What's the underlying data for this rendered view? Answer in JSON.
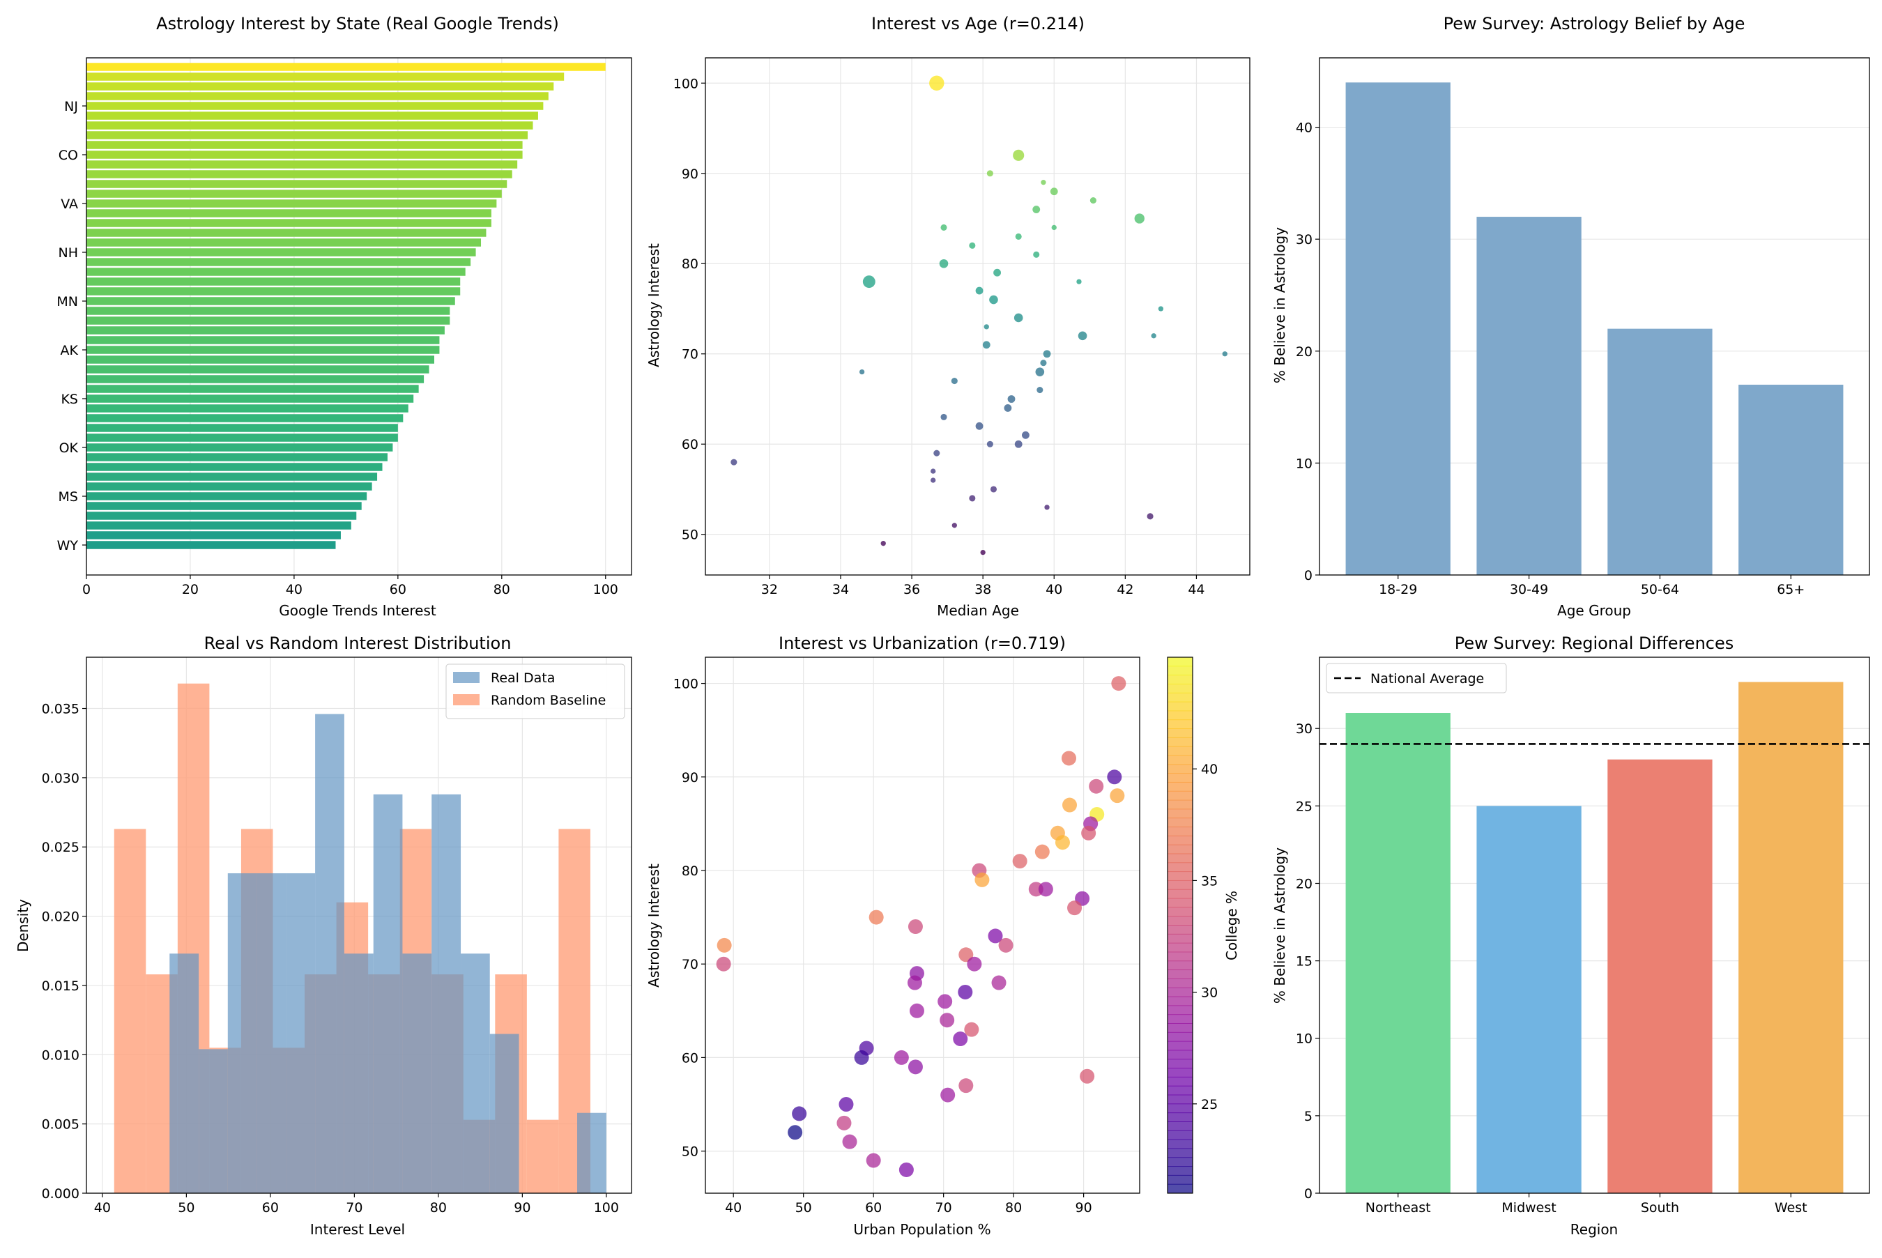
{
  "figure": {
    "background": "#ffffff",
    "grid": true,
    "grid_color": "#e6e6e6"
  },
  "chart_data": [
    {
      "id": "states",
      "type": "bar",
      "orientation": "horizontal",
      "title": "Astrology Interest by State (Real Google Trends)",
      "xlabel": "Google Trends Interest",
      "ylabel": "",
      "xlim": [
        0,
        105
      ],
      "xticks": [
        0,
        20,
        40,
        60,
        80,
        100
      ],
      "colormap": "viridis",
      "color_by": "value",
      "values": [
        100,
        92,
        90,
        89,
        88,
        87,
        86,
        85,
        84,
        84,
        83,
        82,
        81,
        80,
        79,
        78,
        78,
        77,
        76,
        75,
        74,
        73,
        72,
        72,
        71,
        70,
        70,
        69,
        68,
        68,
        67,
        66,
        65,
        64,
        63,
        62,
        61,
        60,
        60,
        59,
        58,
        57,
        56,
        55,
        54,
        53,
        52,
        51,
        49,
        48
      ],
      "ytick_labels": [
        "NJ",
        "CO",
        "VA",
        "NH",
        "MN",
        "AK",
        "KS",
        "OK",
        "MS",
        "WY"
      ],
      "ytick_indices": [
        4,
        9,
        14,
        19,
        24,
        29,
        34,
        39,
        44,
        49
      ]
    },
    {
      "id": "age",
      "type": "scatter",
      "title": "Interest vs Age (r=0.214)",
      "xlabel": "Median Age",
      "ylabel": "Astrology Interest",
      "xlim": [
        30.2,
        45.5
      ],
      "ylim": [
        45.5,
        102.8
      ],
      "xticks": [
        32,
        34,
        36,
        38,
        40,
        42,
        44
      ],
      "yticks": [
        50,
        60,
        70,
        80,
        90,
        100
      ],
      "colormap": "viridis",
      "color_by": "y",
      "color_range": [
        48,
        100
      ],
      "marker_size": "population",
      "points": [
        {
          "x": 36.7,
          "y": 100,
          "s": 10
        },
        {
          "x": 38.2,
          "y": 90,
          "s": 3
        },
        {
          "x": 39.7,
          "y": 89,
          "s": 2
        },
        {
          "x": 40.0,
          "y": 88,
          "s": 4
        },
        {
          "x": 39.0,
          "y": 92,
          "s": 7
        },
        {
          "x": 41.1,
          "y": 87,
          "s": 3
        },
        {
          "x": 39.5,
          "y": 86,
          "s": 4
        },
        {
          "x": 42.4,
          "y": 85,
          "s": 6
        },
        {
          "x": 36.9,
          "y": 84,
          "s": 3
        },
        {
          "x": 40.0,
          "y": 84,
          "s": 2
        },
        {
          "x": 39.0,
          "y": 83,
          "s": 3
        },
        {
          "x": 37.7,
          "y": 82,
          "s": 3
        },
        {
          "x": 39.5,
          "y": 81,
          "s": 3
        },
        {
          "x": 36.9,
          "y": 80,
          "s": 5
        },
        {
          "x": 38.4,
          "y": 79,
          "s": 4
        },
        {
          "x": 34.8,
          "y": 78,
          "s": 8
        },
        {
          "x": 40.7,
          "y": 78,
          "s": 2
        },
        {
          "x": 37.9,
          "y": 77,
          "s": 4
        },
        {
          "x": 38.3,
          "y": 76,
          "s": 5
        },
        {
          "x": 43.0,
          "y": 75,
          "s": 2
        },
        {
          "x": 39.0,
          "y": 74,
          "s": 5
        },
        {
          "x": 38.1,
          "y": 73,
          "s": 2
        },
        {
          "x": 40.8,
          "y": 72,
          "s": 5
        },
        {
          "x": 42.8,
          "y": 72,
          "s": 2
        },
        {
          "x": 38.1,
          "y": 71,
          "s": 4
        },
        {
          "x": 39.8,
          "y": 70,
          "s": 4
        },
        {
          "x": 44.8,
          "y": 70,
          "s": 2
        },
        {
          "x": 39.7,
          "y": 69,
          "s": 3
        },
        {
          "x": 34.6,
          "y": 68,
          "s": 2
        },
        {
          "x": 39.6,
          "y": 68,
          "s": 5
        },
        {
          "x": 37.2,
          "y": 67,
          "s": 3
        },
        {
          "x": 39.6,
          "y": 66,
          "s": 3
        },
        {
          "x": 38.8,
          "y": 65,
          "s": 4
        },
        {
          "x": 38.7,
          "y": 64,
          "s": 4
        },
        {
          "x": 36.9,
          "y": 63,
          "s": 3
        },
        {
          "x": 37.9,
          "y": 62,
          "s": 4
        },
        {
          "x": 39.2,
          "y": 61,
          "s": 4
        },
        {
          "x": 38.2,
          "y": 60,
          "s": 3
        },
        {
          "x": 39.0,
          "y": 60,
          "s": 4
        },
        {
          "x": 36.7,
          "y": 59,
          "s": 3
        },
        {
          "x": 31.0,
          "y": 58,
          "s": 3
        },
        {
          "x": 36.6,
          "y": 57,
          "s": 2
        },
        {
          "x": 36.6,
          "y": 56,
          "s": 2
        },
        {
          "x": 38.3,
          "y": 55,
          "s": 3
        },
        {
          "x": 37.7,
          "y": 54,
          "s": 3
        },
        {
          "x": 39.8,
          "y": 53,
          "s": 2
        },
        {
          "x": 42.7,
          "y": 52,
          "s": 3
        },
        {
          "x": 37.2,
          "y": 51,
          "s": 2
        },
        {
          "x": 35.2,
          "y": 49,
          "s": 2
        },
        {
          "x": 38.0,
          "y": 48,
          "s": 2
        }
      ]
    },
    {
      "id": "pew_age",
      "type": "bar",
      "title": "Pew Survey: Astrology Belief by Age",
      "xlabel": "Age Group",
      "ylabel": "% Believe in Astrology",
      "ylim": [
        0,
        46.2
      ],
      "yticks": [
        0,
        10,
        20,
        30,
        40
      ],
      "categories": [
        "18-29",
        "30-49",
        "50-64",
        "65+"
      ],
      "values": [
        44,
        32,
        22,
        17
      ],
      "color": "#7fa8cb"
    },
    {
      "id": "dist",
      "type": "histogram",
      "title": "Real vs Random Interest Distribution",
      "xlabel": "Interest Level",
      "ylabel": "Density",
      "xlim": [
        38.1,
        103.0
      ],
      "ylim": [
        0,
        0.0387
      ],
      "xticks": [
        40,
        50,
        60,
        70,
        80,
        90,
        100
      ],
      "yticks": [
        0.0,
        0.005,
        0.01,
        0.015,
        0.02,
        0.025,
        0.03,
        0.035
      ],
      "ytick_labels": [
        "0.000",
        "0.005",
        "0.010",
        "0.015",
        "0.020",
        "0.025",
        "0.030",
        "0.035"
      ],
      "legend_position": "upper right",
      "series": [
        {
          "name": "Random Baseline",
          "color": "#ffa07a",
          "opacity": 0.8,
          "edges": [
            41.4,
            45.18,
            48.96,
            52.74,
            56.52,
            60.3,
            64.08,
            67.86,
            71.64,
            75.42,
            79.2,
            82.98,
            86.76,
            90.54,
            94.32,
            98.1
          ],
          "density": [
            0.0263,
            0.0158,
            0.0368,
            0.0105,
            0.0263,
            0.0105,
            0.0158,
            0.021,
            0.0158,
            0.0263,
            0.0158,
            0.0053,
            0.0158,
            0.0053,
            0.0263
          ]
        },
        {
          "name": "Real Data",
          "color": "#6496c3",
          "opacity": 0.7,
          "edges": [
            48,
            51.47,
            54.93,
            58.4,
            61.87,
            65.33,
            68.8,
            72.27,
            75.73,
            79.2,
            82.67,
            86.13,
            89.6,
            93.07,
            96.53,
            100
          ],
          "density": [
            0.0173,
            0.0104,
            0.0231,
            0.0231,
            0.0231,
            0.0346,
            0.0173,
            0.0288,
            0.0173,
            0.0288,
            0.0173,
            0.0115,
            0.0,
            0.0,
            0.0058
          ]
        }
      ]
    },
    {
      "id": "urban",
      "type": "scatter",
      "title": "Interest vs Urbanization (r=0.719)",
      "xlabel": "Urban Population %",
      "ylabel": "Astrology Interest",
      "xlim": [
        36.0,
        98.0
      ],
      "ylim": [
        45.5,
        102.8
      ],
      "xticks": [
        40,
        50,
        60,
        70,
        80,
        90
      ],
      "yticks": [
        50,
        60,
        70,
        80,
        90,
        100
      ],
      "colormap": "plasma",
      "color_by": "college",
      "colorbar": {
        "label": "College %",
        "range": [
          21,
          45
        ],
        "ticks": [
          25,
          30,
          35,
          40
        ]
      },
      "points": [
        {
          "x": 95.0,
          "y": 100,
          "c": 35
        },
        {
          "x": 87.9,
          "y": 92,
          "c": 36
        },
        {
          "x": 94.4,
          "y": 90,
          "c": 24
        },
        {
          "x": 91.8,
          "y": 89,
          "c": 33
        },
        {
          "x": 94.8,
          "y": 88,
          "c": 40
        },
        {
          "x": 88.0,
          "y": 87,
          "c": 40
        },
        {
          "x": 91.9,
          "y": 86,
          "c": 44
        },
        {
          "x": 91.0,
          "y": 85,
          "c": 29
        },
        {
          "x": 86.3,
          "y": 84,
          "c": 40
        },
        {
          "x": 90.7,
          "y": 84,
          "c": 34
        },
        {
          "x": 87.0,
          "y": 83,
          "c": 41
        },
        {
          "x": 84.1,
          "y": 82,
          "c": 37
        },
        {
          "x": 80.9,
          "y": 81,
          "c": 35
        },
        {
          "x": 75.1,
          "y": 80,
          "c": 33
        },
        {
          "x": 75.5,
          "y": 79,
          "c": 40
        },
        {
          "x": 83.2,
          "y": 78,
          "c": 32
        },
        {
          "x": 84.6,
          "y": 78,
          "c": 29
        },
        {
          "x": 89.8,
          "y": 77,
          "c": 28
        },
        {
          "x": 88.7,
          "y": 76,
          "c": 34
        },
        {
          "x": 60.4,
          "y": 75,
          "c": 37
        },
        {
          "x": 66.0,
          "y": 74,
          "c": 33
        },
        {
          "x": 77.4,
          "y": 73,
          "c": 27
        },
        {
          "x": 38.7,
          "y": 72,
          "c": 38
        },
        {
          "x": 78.9,
          "y": 72,
          "c": 33
        },
        {
          "x": 73.2,
          "y": 71,
          "c": 35
        },
        {
          "x": 38.6,
          "y": 70,
          "c": 33
        },
        {
          "x": 74.4,
          "y": 70,
          "c": 29
        },
        {
          "x": 66.2,
          "y": 69,
          "c": 28
        },
        {
          "x": 65.9,
          "y": 68,
          "c": 29
        },
        {
          "x": 77.9,
          "y": 68,
          "c": 30
        },
        {
          "x": 73.1,
          "y": 67,
          "c": 25
        },
        {
          "x": 70.2,
          "y": 66,
          "c": 29
        },
        {
          "x": 66.2,
          "y": 65,
          "c": 29
        },
        {
          "x": 70.5,
          "y": 64,
          "c": 30
        },
        {
          "x": 74.0,
          "y": 63,
          "c": 34
        },
        {
          "x": 72.4,
          "y": 62,
          "c": 27
        },
        {
          "x": 59.0,
          "y": 61,
          "c": 24
        },
        {
          "x": 58.3,
          "y": 60,
          "c": 23
        },
        {
          "x": 64.0,
          "y": 60,
          "c": 29
        },
        {
          "x": 66.0,
          "y": 59,
          "c": 28
        },
        {
          "x": 90.5,
          "y": 58,
          "c": 34
        },
        {
          "x": 73.2,
          "y": 57,
          "c": 33
        },
        {
          "x": 70.6,
          "y": 56,
          "c": 29
        },
        {
          "x": 56.1,
          "y": 55,
          "c": 25
        },
        {
          "x": 49.4,
          "y": 54,
          "c": 23
        },
        {
          "x": 55.8,
          "y": 53,
          "c": 32
        },
        {
          "x": 48.8,
          "y": 52,
          "c": 21
        },
        {
          "x": 56.6,
          "y": 51,
          "c": 30
        },
        {
          "x": 60.0,
          "y": 49,
          "c": 30
        },
        {
          "x": 64.7,
          "y": 48,
          "c": 27
        }
      ]
    },
    {
      "id": "pew_region",
      "type": "bar",
      "title": "Pew Survey: Regional Differences",
      "xlabel": "Region",
      "ylabel": "% Believe in Astrology",
      "ylim": [
        0,
        34.6
      ],
      "yticks": [
        0,
        5,
        10,
        15,
        20,
        25,
        30
      ],
      "categories": [
        "Northeast",
        "Midwest",
        "South",
        "West"
      ],
      "values": [
        31,
        25,
        28,
        33
      ],
      "colors": [
        "#6fd897",
        "#71b4e2",
        "#eb8072",
        "#f3b55c"
      ],
      "reference_line": {
        "value": 29,
        "label": "National Average",
        "style": "dashed"
      },
      "legend_position": "upper left"
    }
  ]
}
